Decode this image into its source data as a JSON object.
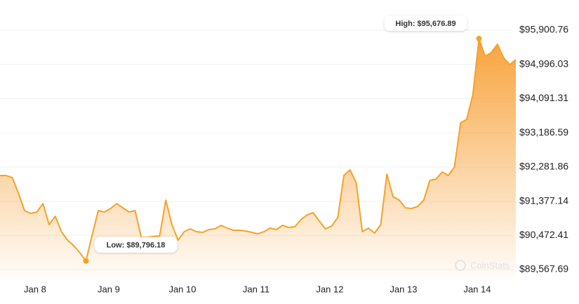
{
  "chart_data": {
    "type": "area",
    "watermark": "CoinStats",
    "color": "#f7a128",
    "values": [
      92056,
      92056,
      92001,
      91592,
      91128,
      91053,
      91091,
      91313,
      90756,
      90979,
      90571,
      90348,
      90199,
      90013,
      89796.18,
      90478,
      91128,
      91091,
      91183,
      91313,
      91202,
      91091,
      91128,
      90422,
      90422,
      90441,
      90459,
      91406,
      90756,
      90348,
      90571,
      90645,
      90571,
      90552,
      90626,
      90645,
      90738,
      90663,
      90608,
      90608,
      90589,
      90552,
      90515,
      90571,
      90663,
      90626,
      90738,
      90682,
      90701,
      90886,
      91016,
      91072,
      90849,
      90645,
      90719,
      90942,
      92056,
      92205,
      91871,
      90571,
      90663,
      90533,
      90756,
      92093,
      91499,
      91406,
      91202,
      91183,
      91239,
      91406,
      91926,
      91963,
      92149,
      92056,
      92279,
      93449,
      93542,
      94192,
      95676.89,
      95214,
      95306,
      95529,
      95176,
      94991,
      95121
    ],
    "xlim": [
      0,
      84
    ],
    "xticks": [
      {
        "value": 5.71,
        "label": "Jan 8"
      },
      {
        "value": 17.71,
        "label": "Jan 9"
      },
      {
        "value": 29.71,
        "label": "Jan 10"
      },
      {
        "value": 41.71,
        "label": "Jan 11"
      },
      {
        "value": 53.71,
        "label": "Jan 12"
      },
      {
        "value": 65.71,
        "label": "Jan 13"
      },
      {
        "value": 77.71,
        "label": "Jan 14"
      }
    ],
    "ylim": [
      89567.69,
      95900.76
    ],
    "yticks": [
      {
        "value": 89567.69,
        "label": "$89,567.69"
      },
      {
        "value": 90472.41,
        "label": "$90,472.41"
      },
      {
        "value": 91377.14,
        "label": "$91,377.14"
      },
      {
        "value": 92281.86,
        "label": "$92,281.86"
      },
      {
        "value": 93186.59,
        "label": "$93,186.59"
      },
      {
        "value": 94091.31,
        "label": "$94,091.31"
      },
      {
        "value": 94996.03,
        "label": "$94,996.03"
      },
      {
        "value": 95900.76,
        "label": "$95,900.76"
      }
    ],
    "grid": true,
    "annotations": [
      {
        "label": "High: $95,676.89"
      },
      {
        "label": "Low: $89,796.18"
      }
    ]
  }
}
